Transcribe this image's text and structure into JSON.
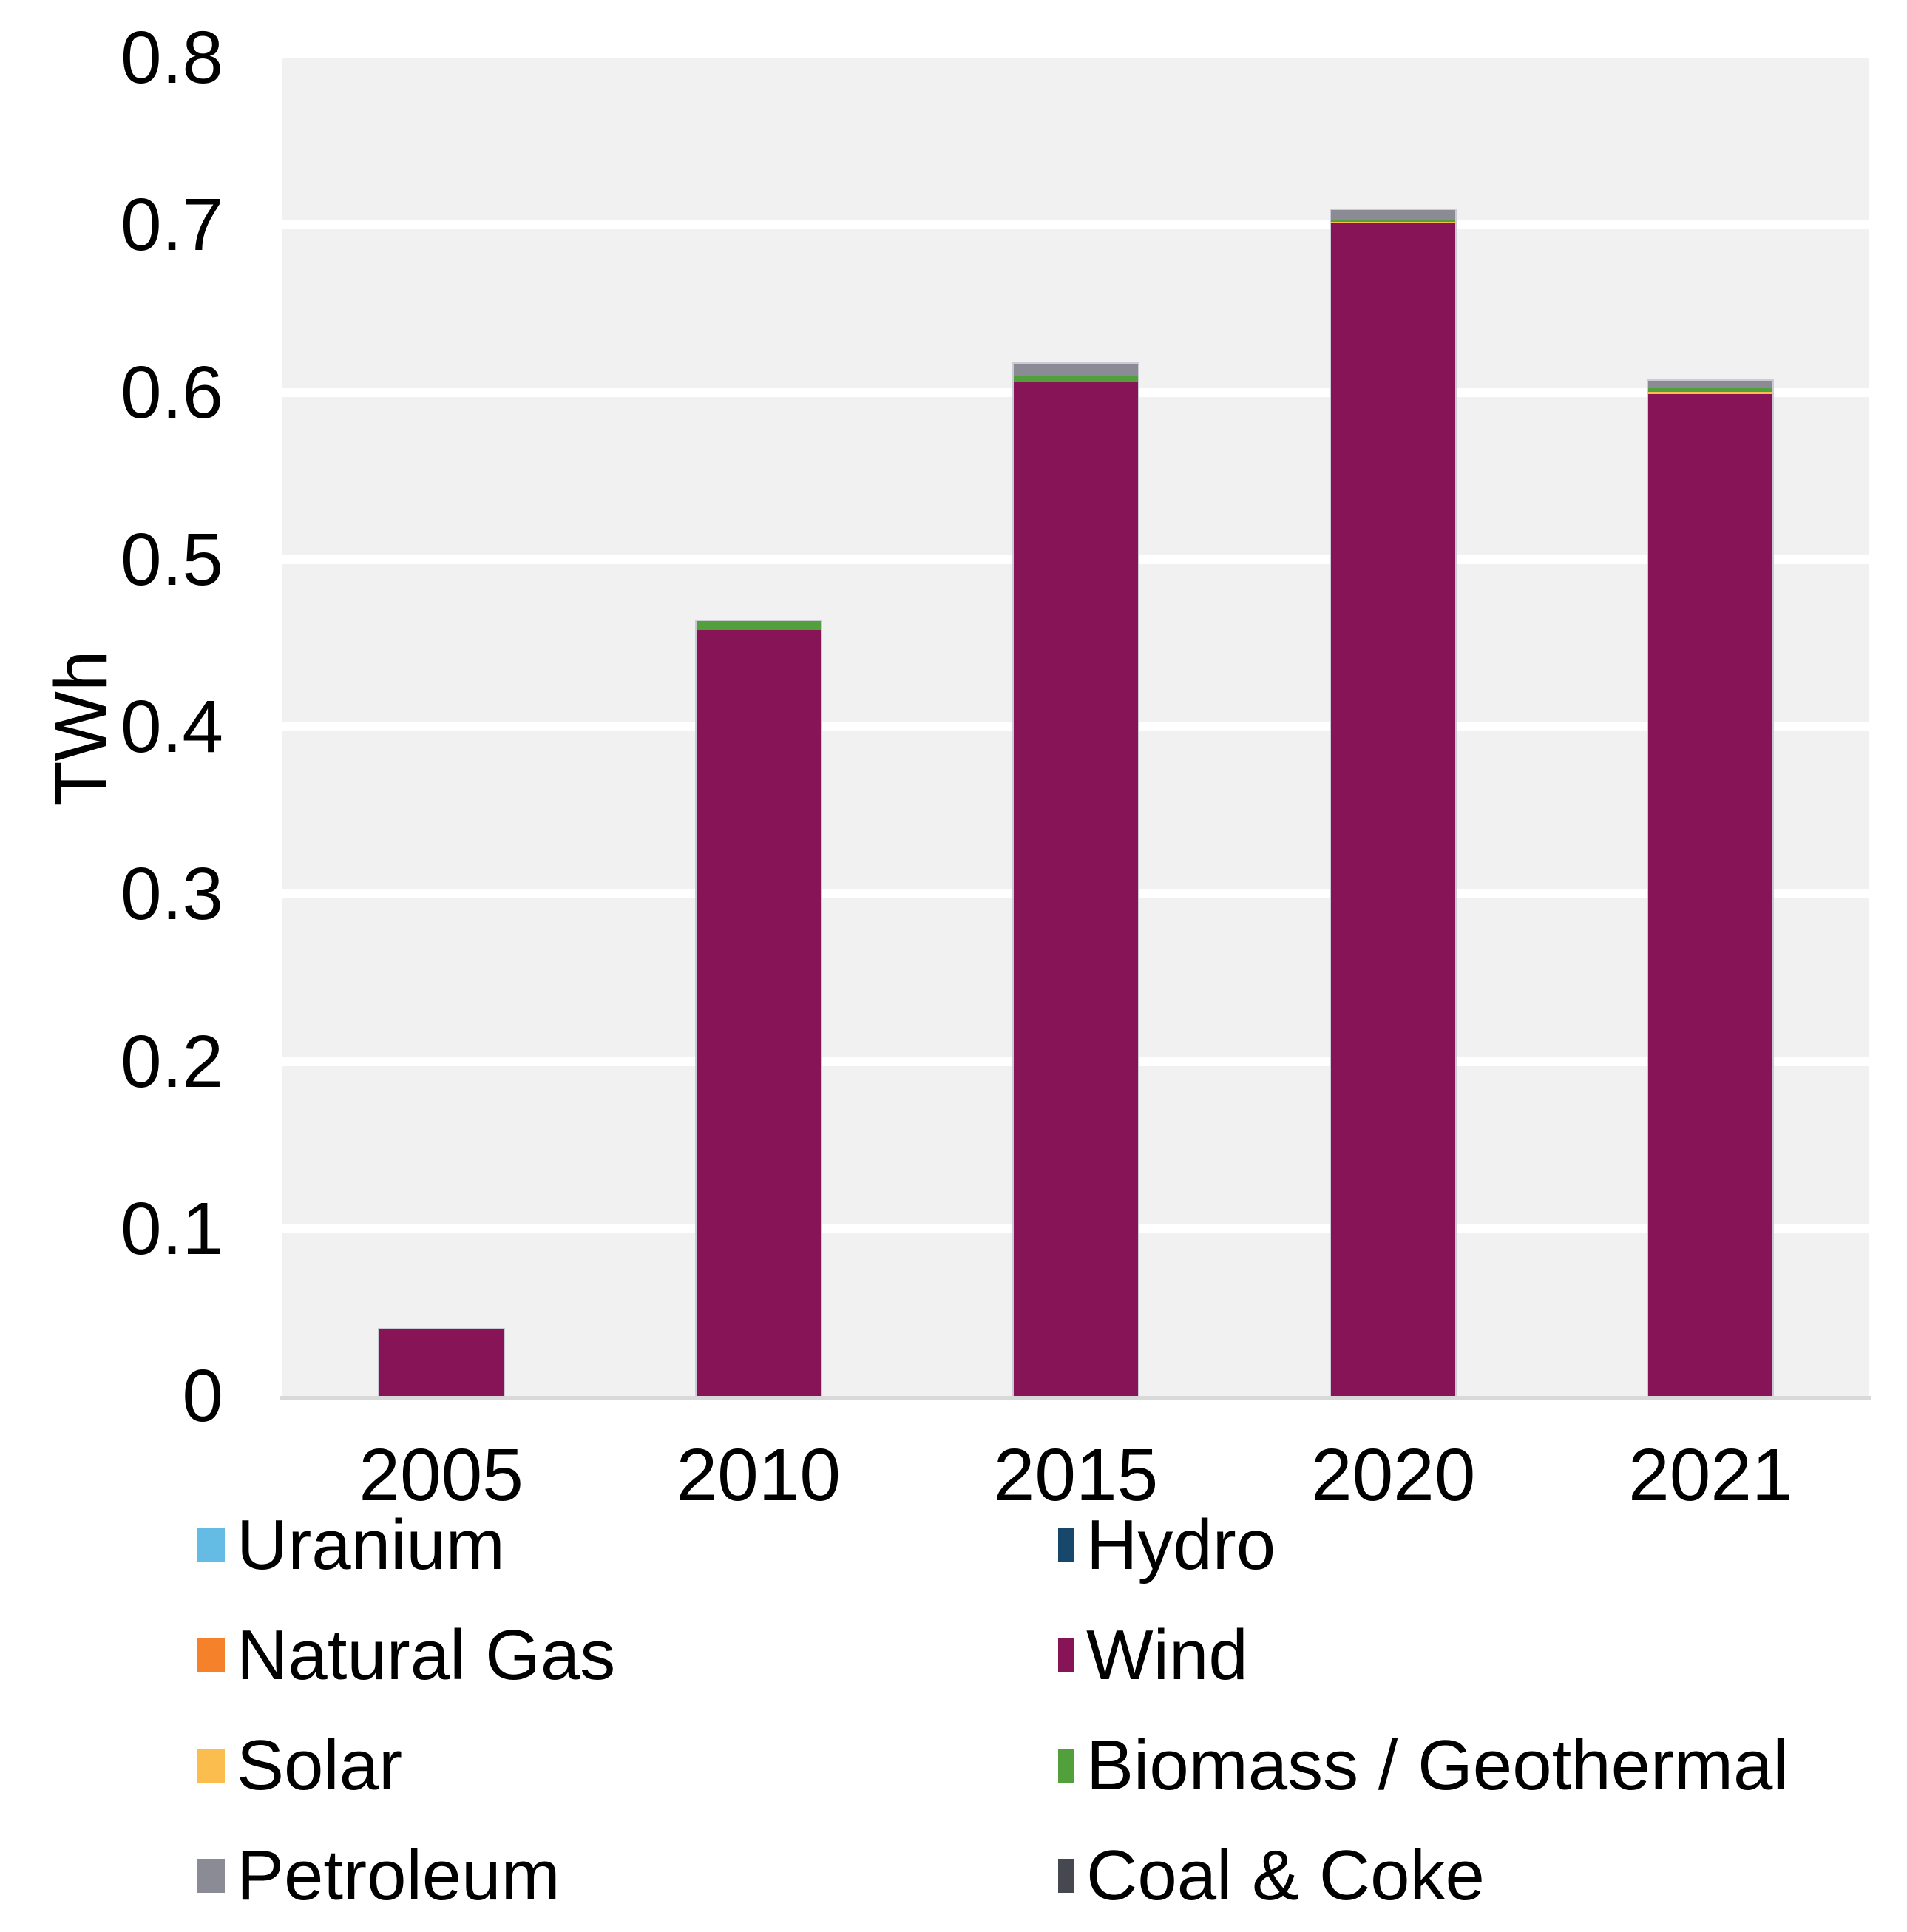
{
  "chart_data": {
    "type": "bar",
    "stacked": true,
    "title": "",
    "xlabel": "",
    "ylabel": "TWh",
    "ylim": [
      0,
      0.8
    ],
    "ytick_step": 0.1,
    "y_ticks": [
      "0",
      "0.1",
      "0.2",
      "0.3",
      "0.4",
      "0.5",
      "0.6",
      "0.7",
      "0.8"
    ],
    "grid": true,
    "plot_background": "#F1F1F1",
    "gridline_color": "#FFFFFF",
    "axis_line_color": "#D9D9D9",
    "legend_position": "bottom-two-columns",
    "categories": [
      "2005",
      "2010",
      "2015",
      "2020",
      "2021"
    ],
    "series": [
      {
        "name": "Wind",
        "color": "#881458",
        "values": [
          0.04,
          0.458,
          0.606,
          0.701,
          0.599
        ]
      },
      {
        "name": "Solar",
        "color": "#FBBE4E",
        "values": [
          0,
          0,
          0,
          0.0009,
          0.0011
        ]
      },
      {
        "name": "Biomass / Geothermal",
        "color": "#52A03B",
        "values": [
          0,
          0.005,
          0.0034,
          0.0013,
          0.0022
        ]
      },
      {
        "name": "Petroleum",
        "color": "#8B8B95",
        "values": [
          0,
          0,
          0.0076,
          0.0057,
          0.0046
        ]
      },
      {
        "name": "Uranium",
        "color": "#64BBE4",
        "values": [
          0,
          0,
          0,
          0,
          0
        ]
      },
      {
        "name": "Natural Gas",
        "color": "#F5822B",
        "values": [
          0,
          0,
          0,
          0,
          0
        ]
      },
      {
        "name": "Hydro",
        "color": "#17476B",
        "values": [
          0,
          0,
          0,
          0,
          0
        ]
      },
      {
        "name": "Coal & Coke",
        "color": "#45494F",
        "values": [
          0,
          0,
          0,
          0,
          0
        ]
      }
    ],
    "legend_columns": [
      [
        "Uranium",
        "Natural Gas",
        "Solar",
        "Petroleum"
      ],
      [
        "Hydro",
        "Wind",
        "Biomass / Geothermal",
        "Coal & Coke"
      ]
    ]
  }
}
